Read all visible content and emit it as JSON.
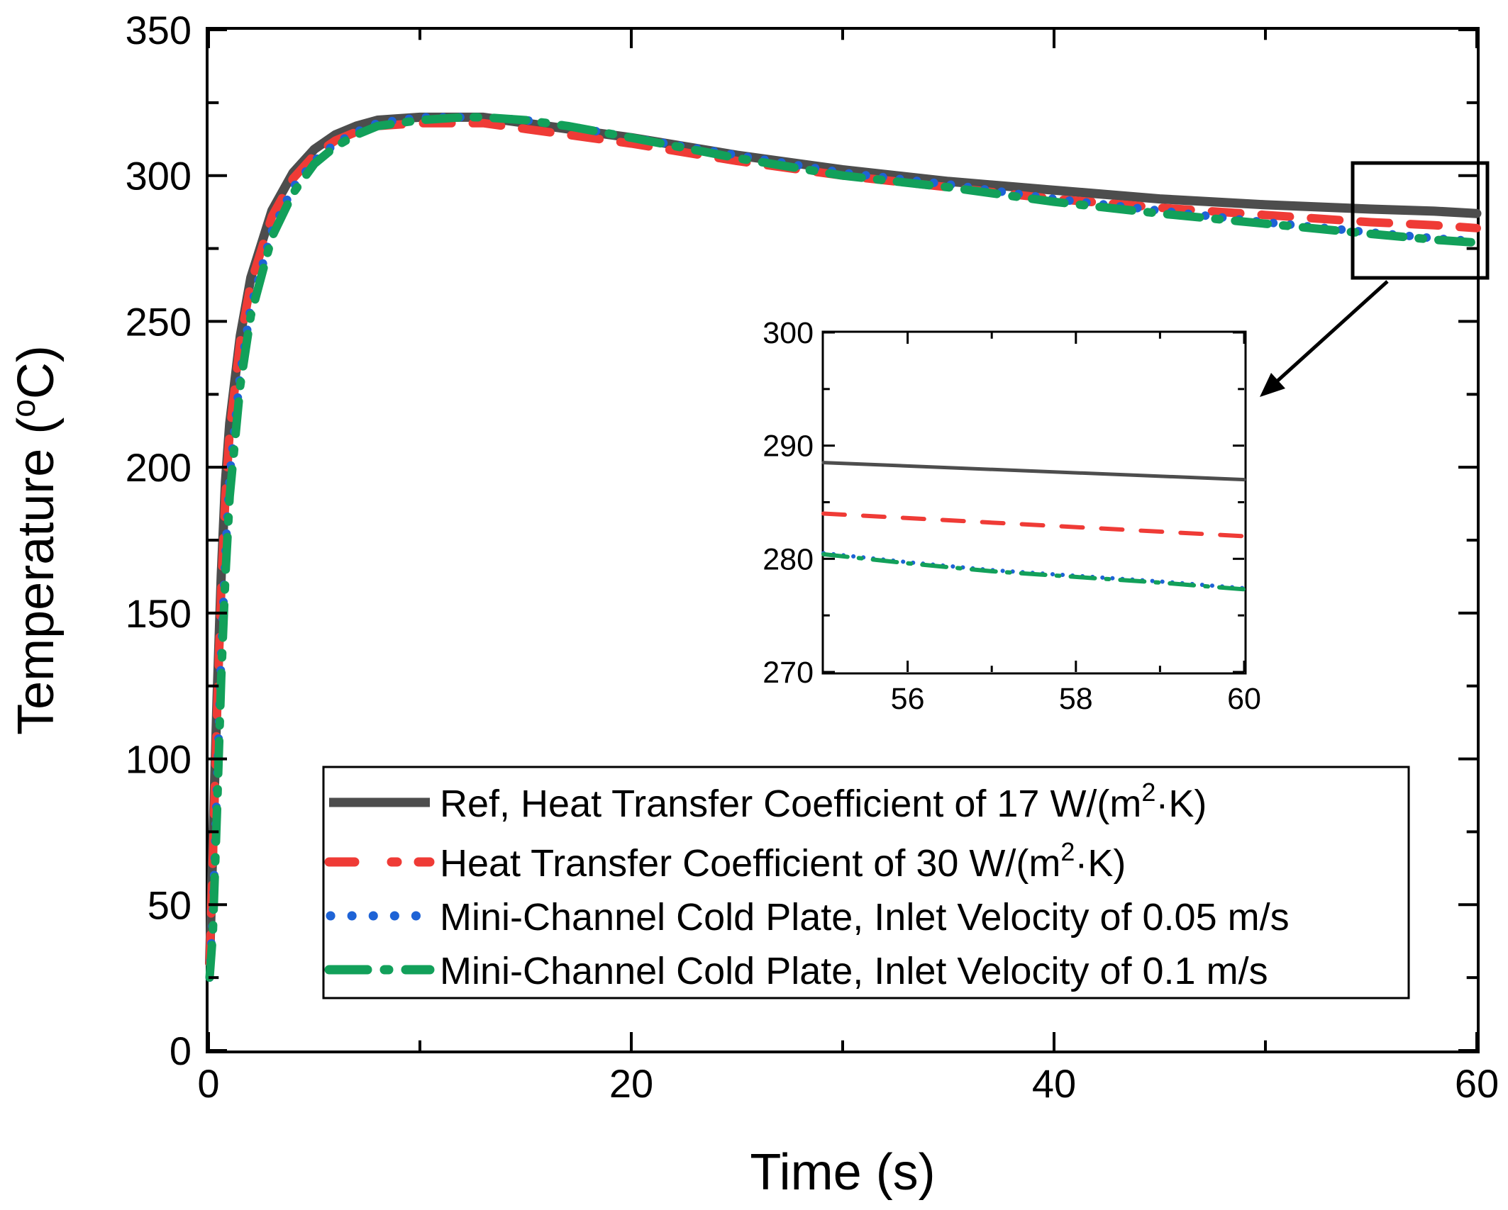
{
  "chart_data": [
    {
      "type": "line",
      "xlabel": "Time (s)",
      "ylabel_prefix": "Temperature (",
      "ylabel_sup": "o",
      "ylabel_suffix": "C)",
      "xlim": [
        0,
        60
      ],
      "ylim": [
        0,
        350
      ],
      "xticks": [
        0,
        20,
        40,
        60
      ],
      "xtick_labels": [
        "0",
        "20",
        "40",
        "60"
      ],
      "yticks": [
        0,
        50,
        100,
        150,
        200,
        250,
        300,
        350
      ],
      "ytick_labels": [
        "0",
        "50",
        "100",
        "150",
        "200",
        "250",
        "300",
        "350"
      ],
      "grid": false,
      "legend_position": "bottom-right",
      "series": [
        {
          "name": "Ref, Heat Transfer Coefficient of 17 W/(m²·K)",
          "legend_pre": "Ref, Heat Transfer Coefficient of 17 W/(m",
          "legend_sup": "2",
          "legend_post": "·K)",
          "color": "#4d4d4d",
          "style": "solid",
          "x": [
            0.05,
            0.2,
            0.4,
            0.6,
            0.8,
            1,
            1.5,
            2,
            3,
            4,
            5,
            6,
            7,
            8,
            10,
            12,
            13,
            15,
            17,
            20,
            25,
            30,
            35,
            40,
            45,
            50,
            55,
            58,
            60
          ],
          "y": [
            30,
            70,
            120,
            163,
            195,
            215,
            245,
            265,
            288,
            301,
            309,
            314,
            317,
            319,
            320,
            320,
            320,
            318,
            316,
            313,
            307,
            302,
            298,
            295,
            292,
            290,
            288.5,
            287.8,
            287
          ]
        },
        {
          "name": "Heat Transfer Coefficient of 30 W/(m²·K)",
          "legend_pre": "Heat Transfer Coefficient of 30 W/(m",
          "legend_sup": "2",
          "legend_post": "·K)",
          "color": "#ef3b36",
          "style": "dash",
          "x": [
            0.05,
            0.2,
            0.4,
            0.6,
            0.8,
            1,
            1.5,
            2,
            3,
            4,
            5,
            6,
            7,
            8,
            10,
            12,
            13,
            15,
            17,
            20,
            25,
            30,
            35,
            40,
            45,
            50,
            55,
            58,
            60
          ],
          "y": [
            30,
            65,
            115,
            158,
            190,
            212,
            243,
            263,
            286,
            299,
            307,
            312,
            315,
            317,
            318,
            318,
            318,
            316,
            314,
            311,
            305,
            300,
            296,
            292,
            289,
            286.5,
            284,
            283,
            282
          ]
        },
        {
          "name": "Mini-Channel Cold Plate, Inlet Velocity of 0.05 m/s",
          "legend_pre": "Mini-Channel Cold Plate, Inlet Velocity of 0.05 m/s",
          "legend_sup": "",
          "legend_post": "",
          "color": "#1e63d6",
          "style": "dot",
          "x": [
            0.05,
            0.2,
            0.4,
            0.6,
            0.8,
            1,
            1.5,
            2,
            3,
            4,
            5,
            6,
            7,
            8,
            10,
            12,
            13,
            15,
            17,
            20,
            25,
            30,
            35,
            40,
            45,
            50,
            55,
            58,
            60
          ],
          "y": [
            25,
            45,
            90,
            135,
            170,
            197,
            232,
            255,
            281,
            296,
            305,
            311,
            315,
            318,
            320,
            320,
            320,
            319,
            317,
            313,
            307,
            301,
            297,
            292,
            288,
            284,
            280.5,
            278.5,
            277.5
          ]
        },
        {
          "name": "Mini-Channel Cold Plate, Inlet Velocity of 0.1 m/s",
          "legend_pre": "Mini-Channel Cold Plate, Inlet Velocity of 0.1 m/s",
          "legend_sup": "",
          "legend_post": "",
          "color": "#12a05a",
          "style": "dashdot",
          "x": [
            0.05,
            0.2,
            0.4,
            0.6,
            0.8,
            1,
            1.5,
            2,
            3,
            4,
            5,
            6,
            7,
            8,
            10,
            12,
            13,
            15,
            17,
            20,
            25,
            30,
            35,
            40,
            45,
            50,
            55,
            58,
            60
          ],
          "y": [
            25,
            40,
            82,
            128,
            163,
            190,
            228,
            252,
            279,
            294,
            304,
            310,
            314,
            317,
            319,
            320,
            320,
            319,
            317,
            313,
            306,
            300,
            296,
            291,
            287,
            283.5,
            280,
            278,
            277
          ]
        }
      ]
    },
    {
      "type": "line",
      "role": "inset zoom of 55-60 s",
      "xlim": [
        55,
        60
      ],
      "ylim": [
        270,
        300
      ],
      "xticks": [
        56,
        58,
        60
      ],
      "xtick_labels": [
        "56",
        "58",
        "60"
      ],
      "yticks": [
        270,
        280,
        290,
        300
      ],
      "ytick_labels": [
        "270",
        "280",
        "290",
        "300"
      ],
      "series": [
        {
          "name": "Ref 17",
          "color": "#4d4d4d",
          "style": "solid",
          "x": [
            55,
            60
          ],
          "y": [
            288.5,
            287
          ]
        },
        {
          "name": "HTC 30",
          "color": "#ef3b36",
          "style": "dash",
          "x": [
            55,
            60
          ],
          "y": [
            284,
            282
          ]
        },
        {
          "name": "Mini-Channel 0.05",
          "color": "#1e63d6",
          "style": "dot",
          "x": [
            55,
            56,
            57,
            58,
            59,
            60
          ],
          "y": [
            280.5,
            279.7,
            279.0,
            278.5,
            278.0,
            277.4
          ]
        },
        {
          "name": "Mini-Channel 0.1",
          "color": "#12a05a",
          "style": "dashdot",
          "x": [
            55,
            56,
            57,
            58,
            59,
            60
          ],
          "y": [
            280.4,
            279.6,
            278.9,
            278.4,
            277.9,
            277.3
          ]
        }
      ]
    }
  ]
}
